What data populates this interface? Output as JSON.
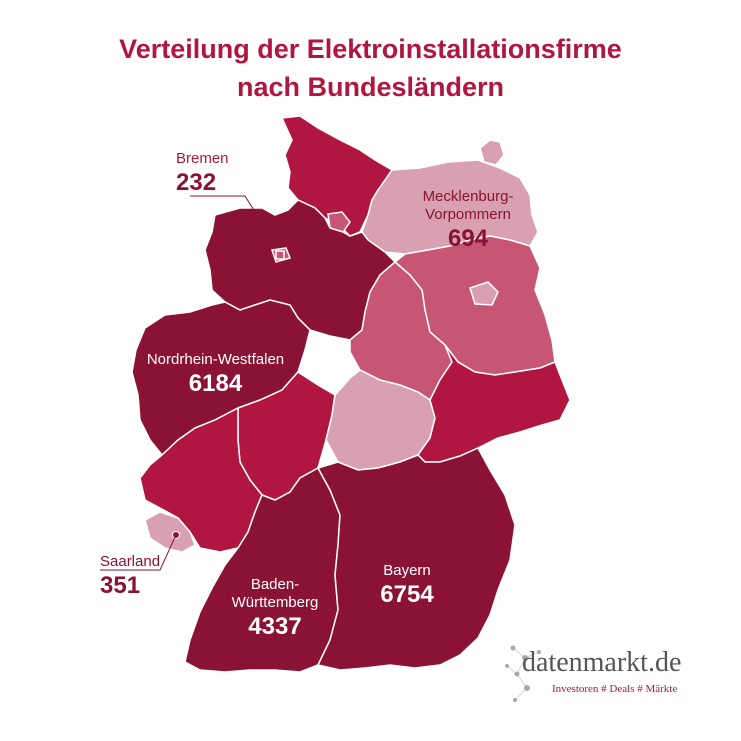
{
  "title_line1": "Verteilung der Elektroinstallationsfirme",
  "title_line2": "nach Bundesländern",
  "colors": {
    "darkest": "#8a1235",
    "dark": "#b0163f",
    "mid": "#c75675",
    "light": "#d9a0b2",
    "title": "#b0163f"
  },
  "labels": {
    "bremen": {
      "name": "Bremen",
      "value": "232"
    },
    "mv": {
      "name": "Mecklenburg-Vorpommern",
      "name_l1": "Mecklenburg-",
      "name_l2": "Vorpommern",
      "value": "694"
    },
    "nrw": {
      "name": "Nordrhein-Westfalen",
      "value": "6184"
    },
    "saarland": {
      "name": "Saarland",
      "value": "351"
    },
    "bw": {
      "name_l1": "Baden-",
      "name_l2": "Württemberg",
      "value": "4337"
    },
    "bayern": {
      "name": "Bayern",
      "value": "6754"
    }
  },
  "logo": {
    "name": "datenmarkt.de",
    "tagline": "Investoren # Deals # Märkte"
  }
}
